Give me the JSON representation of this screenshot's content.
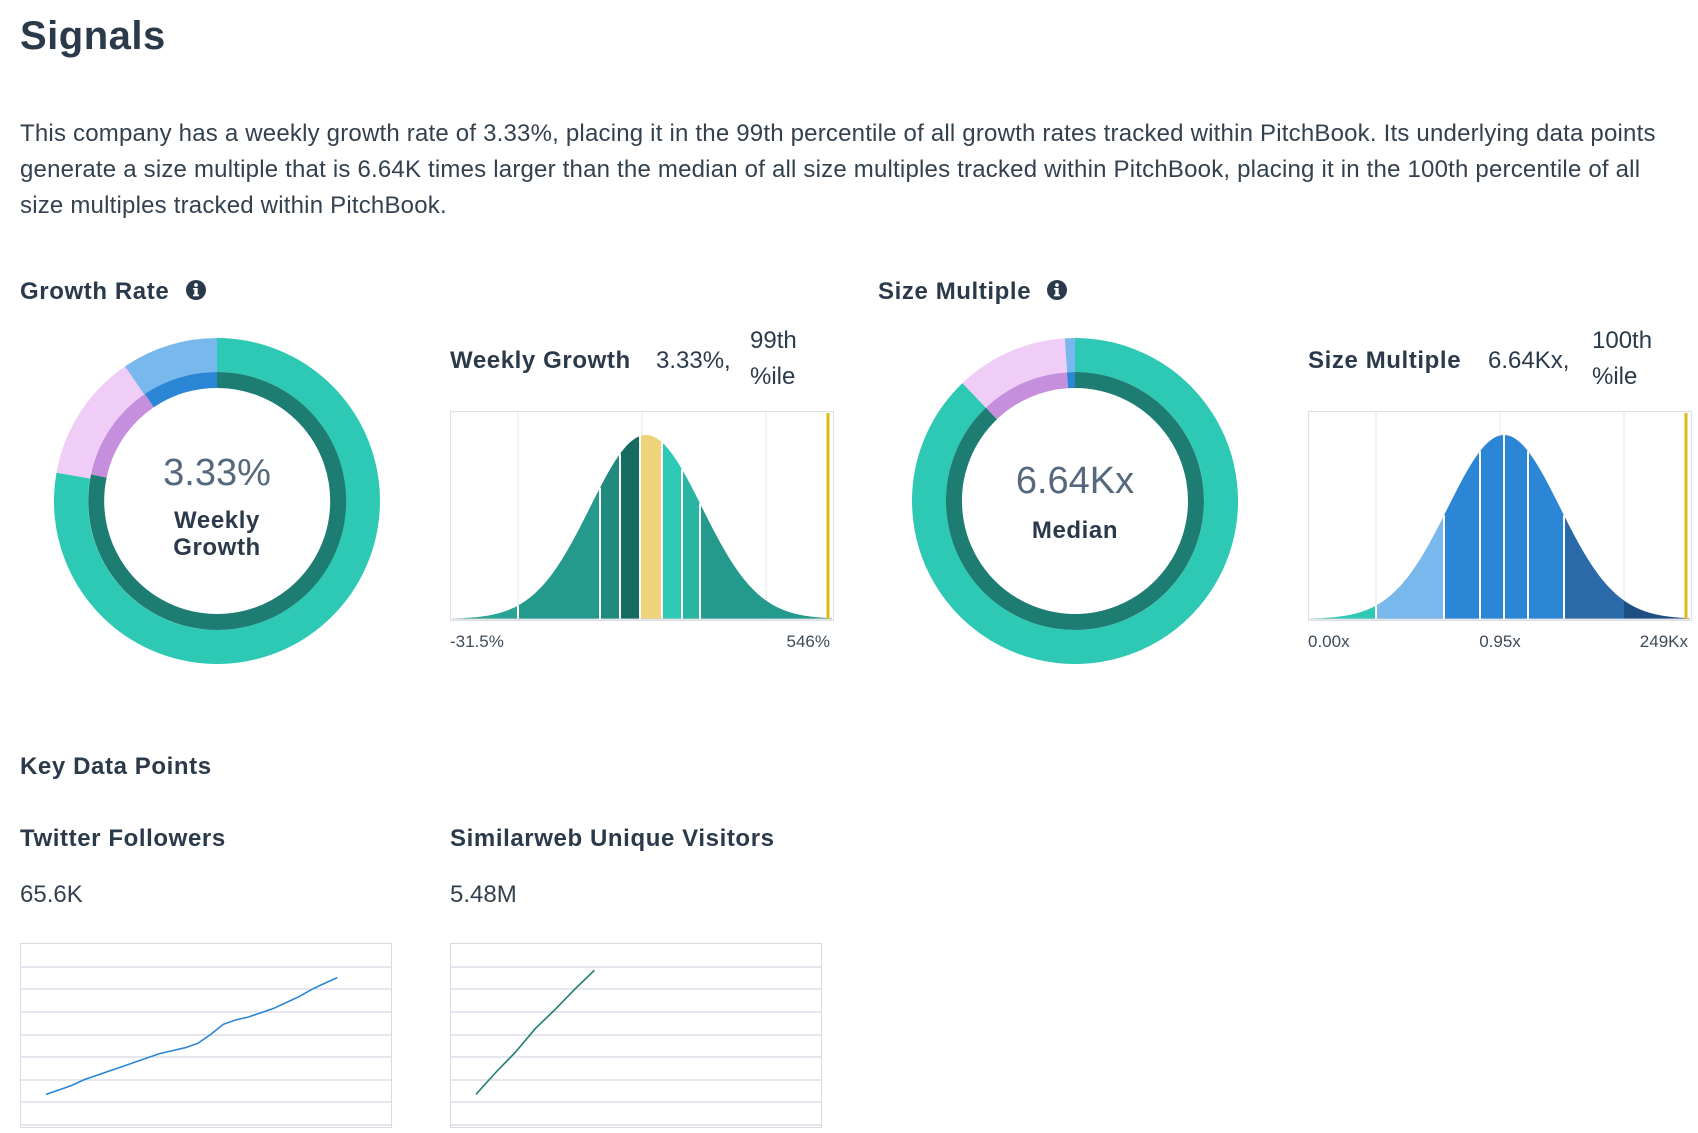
{
  "page": {
    "title": "Signals",
    "intro": "This company has a weekly growth rate of 3.33%, placing it in the 99th percentile of all growth rates tracked within PitchBook. Its underlying data points generate a size multiple that is 6.64K times larger than the median of all size multiples tracked within PitchBook, placing it in the 100th percentile of all size multiples tracked within PitchBook."
  },
  "growth_rate": {
    "heading": "Growth Rate",
    "donut": {
      "value": "3.33%",
      "label_line1": "Weekly",
      "label_line2": "Growth"
    },
    "chart": {
      "label": "Weekly Growth",
      "value": "3.33%,",
      "percentile_line1": "99th",
      "percentile_line2": "%ile",
      "axis_min": "-31.5%",
      "axis_max": "546%"
    }
  },
  "size_multiple": {
    "heading": "Size Multiple",
    "donut": {
      "value": "6.64Kx",
      "label": "Median"
    },
    "chart": {
      "label": "Size Multiple",
      "value": "6.64Kx,",
      "percentile_line1": "100th",
      "percentile_line2": "%ile",
      "axis_min": "0.00x",
      "axis_mid": "0.95x",
      "axis_max": "249Kx"
    }
  },
  "key_data_points": {
    "heading": "Key Data Points",
    "twitter": {
      "label": "Twitter Followers",
      "value": "65.6K"
    },
    "similarweb": {
      "label": "Similarweb Unique Visitors",
      "value": "5.48M"
    }
  },
  "colors": {
    "teal": "#2ec9b5",
    "teal_dark": "#1e7d73",
    "pink": "#f0cdf7",
    "pink_dark": "#c58fdd",
    "blue_light": "#79b8ec",
    "blue": "#2b86d6",
    "blue_dark": "#215f9b",
    "gold": "#e2b81a",
    "text": "#2b3a4b",
    "muted": "#56697c"
  },
  "chart_data": [
    {
      "type": "area",
      "title": "Weekly Growth",
      "xlabel": "",
      "ylabel": "",
      "x_range_labels": [
        "-31.5%",
        "546%"
      ],
      "distribution": "normal",
      "marked_percentile": 99
    },
    {
      "type": "area",
      "title": "Size Multiple",
      "xlabel": "",
      "ylabel": "",
      "x_range_labels": [
        "0.00x",
        "0.95x",
        "249Kx"
      ],
      "distribution": "normal",
      "marked_percentile": 100
    },
    {
      "type": "line",
      "title": "Twitter Followers",
      "x": [
        0,
        1,
        2,
        3,
        4,
        5,
        6,
        7,
        8,
        9,
        10,
        11,
        12,
        13,
        14,
        15,
        16,
        17,
        18,
        19,
        20,
        21,
        22,
        23
      ],
      "values": [
        0.1,
        0.13,
        0.16,
        0.2,
        0.23,
        0.26,
        0.29,
        0.32,
        0.35,
        0.38,
        0.4,
        0.42,
        0.45,
        0.51,
        0.58,
        0.61,
        0.63,
        0.66,
        0.69,
        0.73,
        0.77,
        0.82,
        0.86,
        0.9
      ],
      "ylim": [
        0,
        1
      ]
    },
    {
      "type": "line",
      "title": "Similarweb Unique Visitors",
      "x": [
        0,
        1,
        2,
        3,
        4,
        5,
        6
      ],
      "values": [
        0.1,
        0.25,
        0.39,
        0.55,
        0.68,
        0.82,
        0.95
      ],
      "ylim": [
        0,
        1
      ]
    }
  ]
}
